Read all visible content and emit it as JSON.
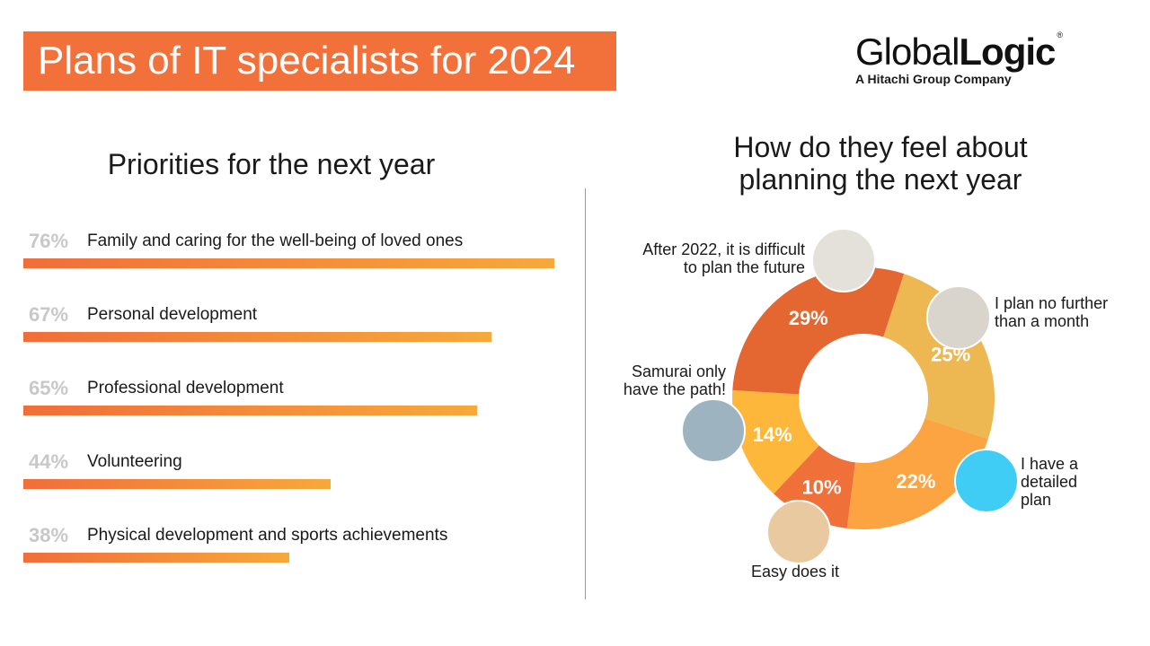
{
  "header": {
    "title": "Plans of IT specialists for 2024",
    "logo_main_light": "Global",
    "logo_main_bold": "Logic",
    "logo_reg": "®",
    "logo_sub": "A Hitachi Group Company"
  },
  "chart_data": [
    {
      "type": "bar",
      "title": "Priorities for the next year",
      "orientation": "horizontal",
      "categories": [
        "Family and caring for the well-being of loved ones",
        "Personal development",
        "Professional development",
        "Volunteering",
        "Physical development and sports achievements"
      ],
      "values": [
        76,
        67,
        65,
        44,
        38
      ],
      "labels": [
        "76%",
        "67%",
        "65%",
        "44%",
        "38%"
      ],
      "xlim": [
        0,
        76
      ]
    },
    {
      "type": "pie",
      "subtype": "donut",
      "title": "How do they feel about planning the next year",
      "title_lines": [
        "How do they feel about",
        "planning the next year"
      ],
      "slices": [
        {
          "label": "I plan no further than a month",
          "value": 25,
          "text": "25%",
          "color": "#EDB851",
          "lines": [
            "I plan no further",
            "than a month"
          ]
        },
        {
          "label": "I have a detailed plan",
          "value": 22,
          "text": "22%",
          "color": "#FBA441",
          "lines": [
            "I have a",
            "detailed",
            "plan"
          ]
        },
        {
          "label": "Easy does it",
          "value": 10,
          "text": "10%",
          "color": "#F0703A",
          "lines": [
            "Easy does it"
          ]
        },
        {
          "label": "Samurai only have the path!",
          "value": 14,
          "text": "14%",
          "color": "#FDB83C",
          "lines": [
            "Samurai only",
            "have the path!"
          ]
        },
        {
          "label": "After 2022, it is difficult to plan the future",
          "value": 29,
          "text": "29%",
          "color": "#E46732",
          "lines": [
            "After 2022, it is difficult",
            "to plan the future"
          ]
        }
      ]
    }
  ]
}
